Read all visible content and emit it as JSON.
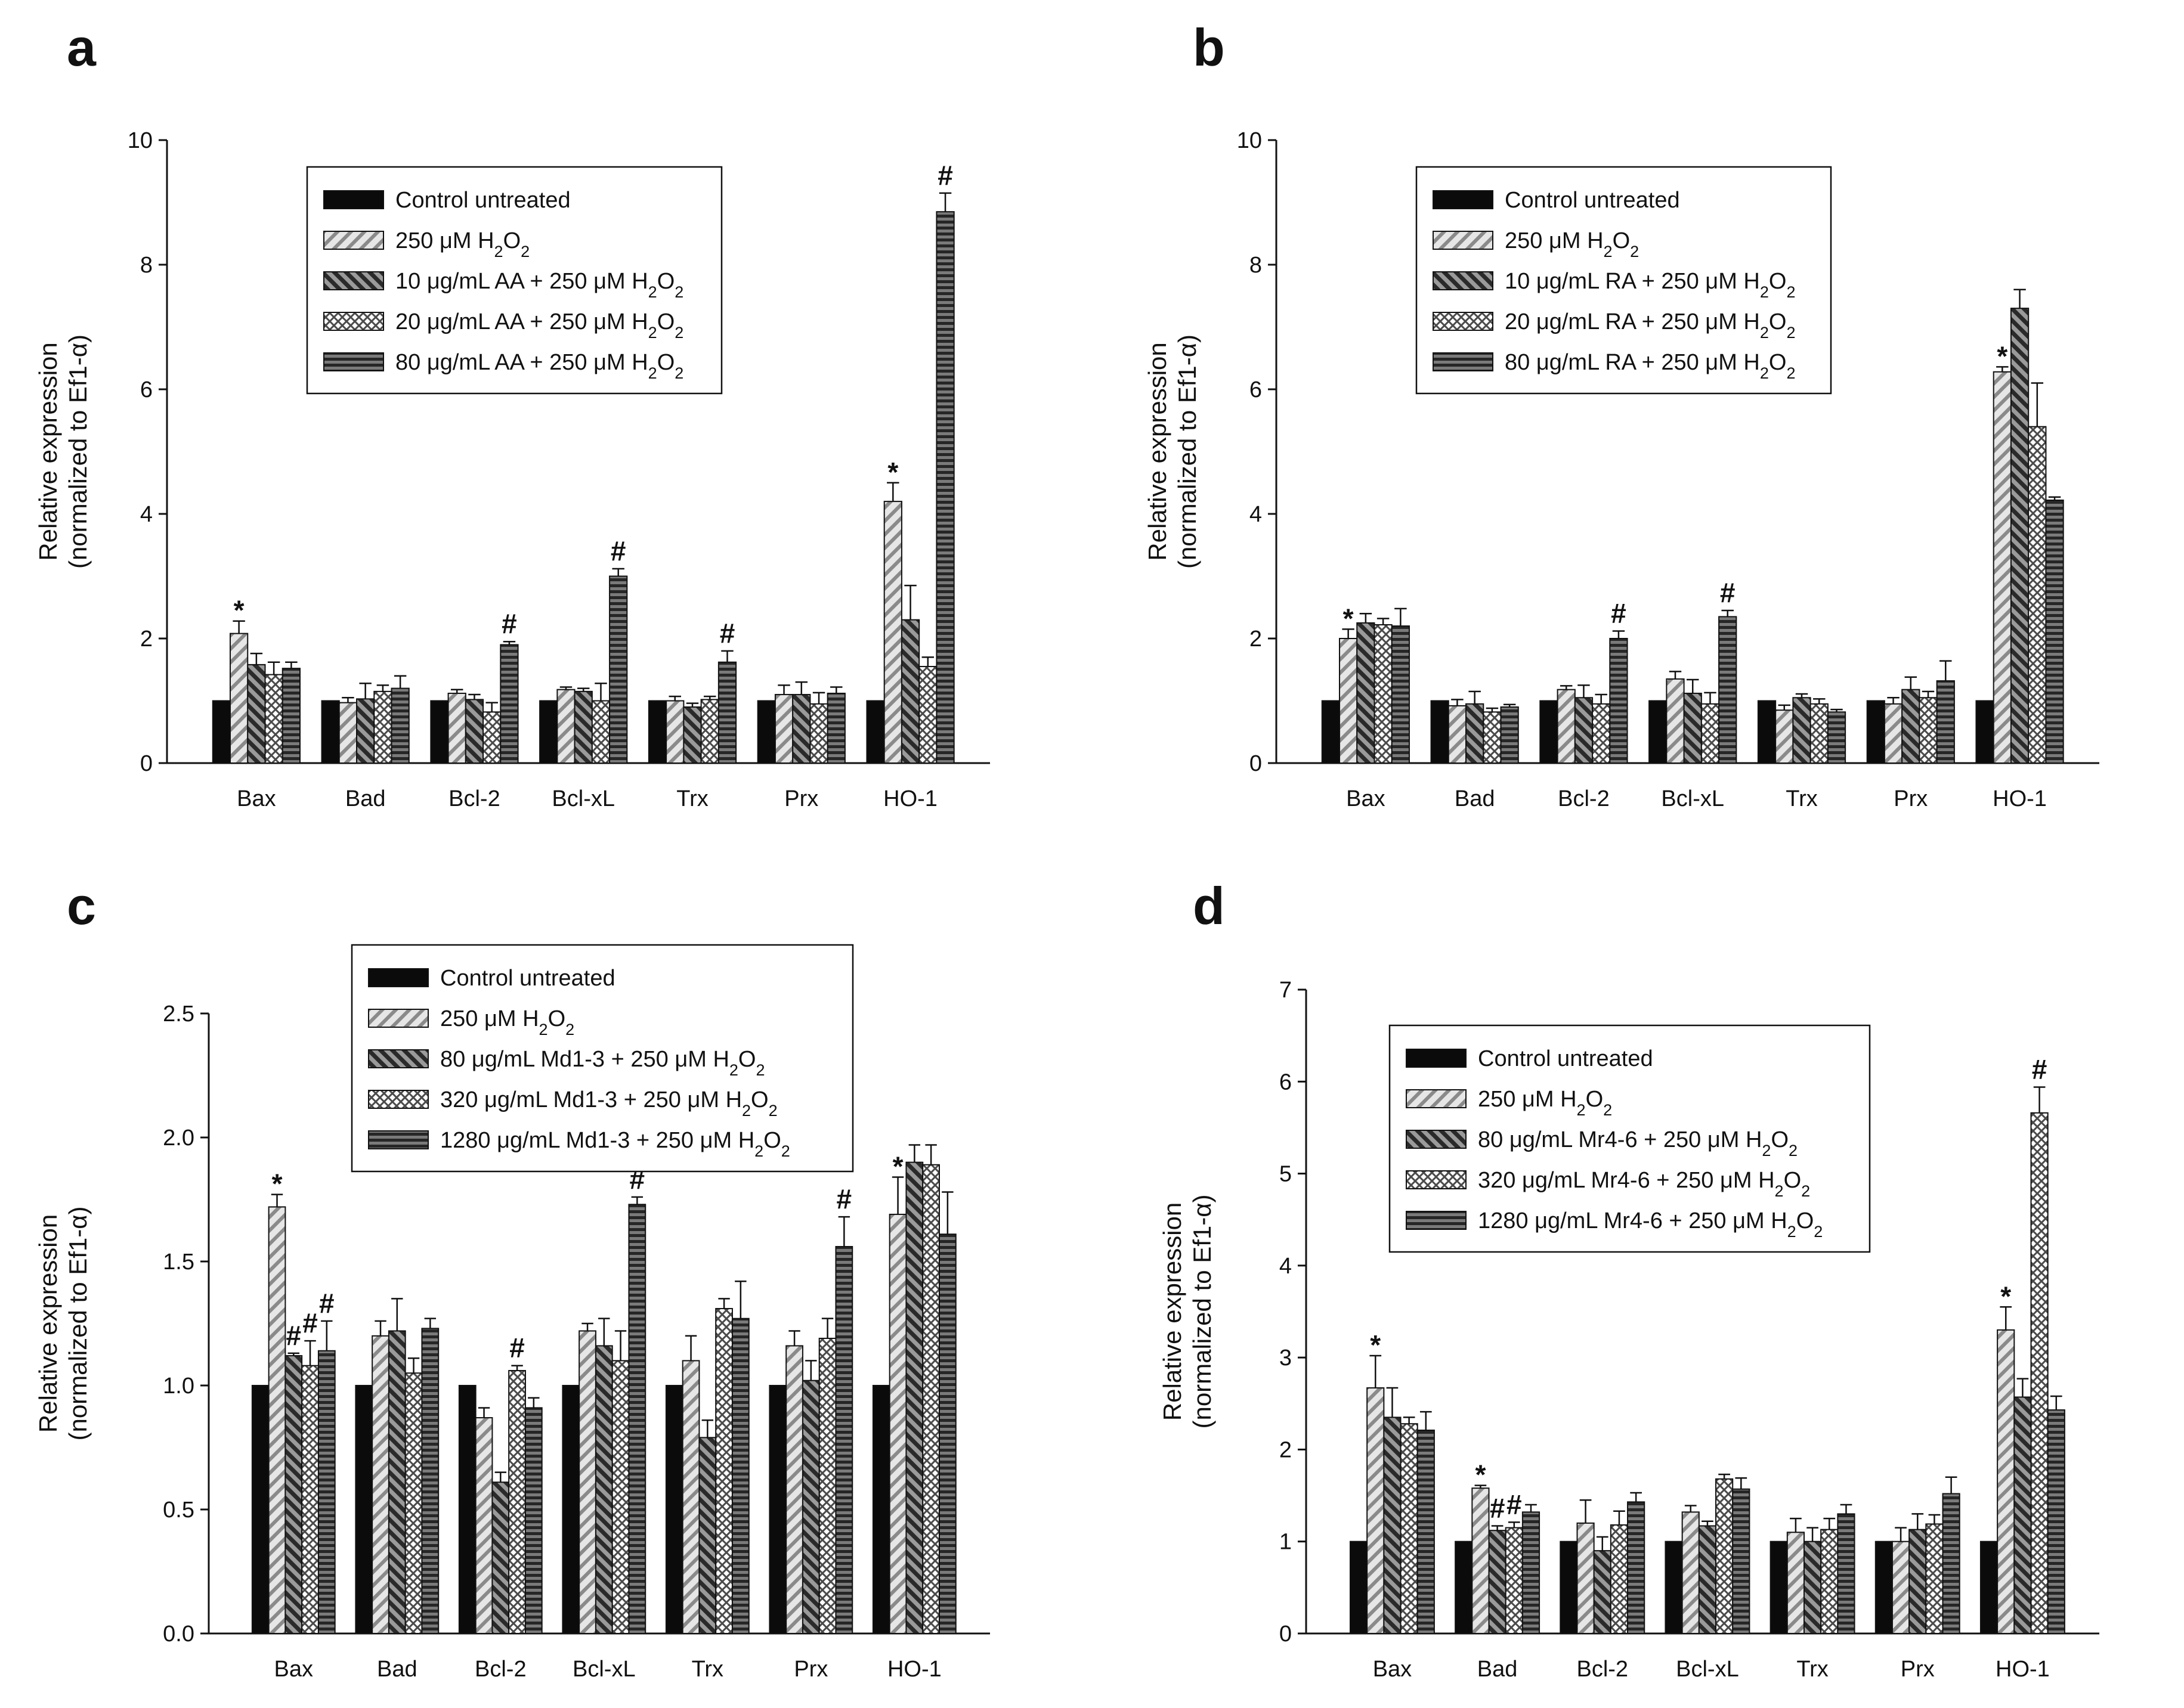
{
  "figure": {
    "colors": {
      "ink": "#111111",
      "control": "#0b0b0b",
      "h2o2": "#cfcfcf",
      "low": "#6a6a6a",
      "mid": "#f2f2f2",
      "high": "#4a4a4a"
    },
    "fill_patterns": [
      "solid-black",
      "diagonal-light",
      "diagonal-dark",
      "crosshatch",
      "horizontal-dark"
    ]
  },
  "chart_data": [
    {
      "panel": "a",
      "type": "bar",
      "ylabel_line1": "Relative expression",
      "ylabel_line2": "(normalized to Ef1-α)",
      "ylim": [
        0,
        10
      ],
      "yticks": [
        "0",
        "2",
        "4",
        "6",
        "8",
        "10"
      ],
      "ytick_values": [
        0,
        2,
        4,
        6,
        8,
        10
      ],
      "categories": [
        "Bax",
        "Bad",
        "Bcl-2",
        "Bcl-xL",
        "Trx",
        "Prx",
        "HO-1"
      ],
      "legend": [
        "Control untreated",
        "250 μM H2O2",
        "10 μg/mL AA + 250 μM H2O2",
        "20 μg/mL AA + 250 μM H2O2",
        "80 μg/mL AA + 250 μM H2O2"
      ],
      "series": [
        {
          "name": "Control untreated",
          "values": [
            1,
            1,
            1,
            1,
            1,
            1,
            1
          ],
          "errors": [
            0,
            0,
            0,
            0,
            0,
            0,
            0
          ]
        },
        {
          "name": "250 μM H2O2",
          "values": [
            2.08,
            0.97,
            1.12,
            1.18,
            1.0,
            1.1,
            4.2
          ],
          "errors": [
            0.2,
            0.08,
            0.06,
            0.04,
            0.07,
            0.15,
            0.3
          ]
        },
        {
          "name": "10 μg/mL AA + 250 μM H2O2",
          "values": [
            1.58,
            1.03,
            1.02,
            1.15,
            0.9,
            1.1,
            2.3
          ],
          "errors": [
            0.18,
            0.25,
            0.08,
            0.05,
            0.06,
            0.2,
            0.55
          ]
        },
        {
          "name": "20 μg/mL AA + 250 μM H2O2",
          "values": [
            1.42,
            1.15,
            0.82,
            1.0,
            1.02,
            0.95,
            1.55
          ],
          "errors": [
            0.2,
            0.1,
            0.15,
            0.28,
            0.05,
            0.18,
            0.15
          ]
        },
        {
          "name": "80 μg/mL AA + 250 μM H2O2",
          "values": [
            1.52,
            1.2,
            1.9,
            3.0,
            1.62,
            1.12,
            8.85
          ],
          "errors": [
            0.1,
            0.2,
            0.05,
            0.12,
            0.18,
            0.1,
            0.3
          ]
        }
      ],
      "markers": [
        {
          "text": "*",
          "category": 0,
          "series": 1
        },
        {
          "text": "#",
          "category": 2,
          "series": 4
        },
        {
          "text": "#",
          "category": 3,
          "series": 4
        },
        {
          "text": "#",
          "category": 4,
          "series": 4
        },
        {
          "text": "*",
          "category": 6,
          "series": 1
        },
        {
          "text": "#",
          "category": 6,
          "series": 4
        }
      ]
    },
    {
      "panel": "b",
      "type": "bar",
      "ylabel_line1": "Relative expression",
      "ylabel_line2": "(normalized to Ef1-α)",
      "ylim": [
        0,
        10
      ],
      "yticks": [
        "0",
        "2",
        "4",
        "6",
        "8",
        "10"
      ],
      "ytick_values": [
        0,
        2,
        4,
        6,
        8,
        10
      ],
      "categories": [
        "Bax",
        "Bad",
        "Bcl-2",
        "Bcl-xL",
        "Trx",
        "Prx",
        "HO-1"
      ],
      "legend": [
        "Control untreated",
        "250 μM H2O2",
        "10 μg/mL RA + 250 μM H2O2",
        "20 μg/mL RA + 250 μM H2O2",
        "80 μg/mL RA + 250 μM H2O2"
      ],
      "series": [
        {
          "name": "Control untreated",
          "values": [
            1,
            1,
            1,
            1,
            1,
            1,
            1
          ],
          "errors": [
            0,
            0,
            0,
            0,
            0,
            0,
            0
          ]
        },
        {
          "name": "250 μM H2O2",
          "values": [
            2.0,
            0.92,
            1.18,
            1.35,
            0.85,
            0.95,
            6.28
          ],
          "errors": [
            0.15,
            0.1,
            0.06,
            0.12,
            0.08,
            0.1,
            0.08
          ]
        },
        {
          "name": "10 μg/mL RA + 250 μM H2O2",
          "values": [
            2.25,
            0.95,
            1.05,
            1.12,
            1.05,
            1.18,
            7.3
          ],
          "errors": [
            0.15,
            0.2,
            0.2,
            0.22,
            0.06,
            0.2,
            0.3
          ]
        },
        {
          "name": "20 μg/mL RA + 250 μM H2O2",
          "values": [
            2.22,
            0.82,
            0.95,
            0.95,
            0.95,
            1.05,
            5.4
          ],
          "errors": [
            0.1,
            0.06,
            0.15,
            0.18,
            0.08,
            0.1,
            0.7
          ]
        },
        {
          "name": "80 μg/mL RA + 250 μM H2O2",
          "values": [
            2.2,
            0.9,
            2.0,
            2.35,
            0.82,
            1.32,
            4.22
          ],
          "errors": [
            0.28,
            0.04,
            0.12,
            0.1,
            0.04,
            0.32,
            0.05
          ]
        }
      ],
      "markers": [
        {
          "text": "*",
          "category": 0,
          "series": 1
        },
        {
          "text": "#",
          "category": 2,
          "series": 4
        },
        {
          "text": "#",
          "category": 3,
          "series": 4
        },
        {
          "text": "*",
          "category": 6,
          "series": 1
        }
      ]
    },
    {
      "panel": "c",
      "type": "bar",
      "ylabel_line1": "Relative expression",
      "ylabel_line2": "(normalized to Ef1-α)",
      "ylim": [
        0,
        2.5
      ],
      "yticks": [
        "0.0",
        "0.5",
        "1.0",
        "1.5",
        "2.0",
        "2.5"
      ],
      "ytick_values": [
        0,
        0.5,
        1.0,
        1.5,
        2.0,
        2.5
      ],
      "categories": [
        "Bax",
        "Bad",
        "Bcl-2",
        "Bcl-xL",
        "Trx",
        "Prx",
        "HO-1"
      ],
      "legend": [
        "Control untreated",
        "250 μM H2O2",
        "80 μg/mL Md1-3 + 250 μM H2O2",
        "320 μg/mL Md1-3 + 250 μM H2O2",
        "1280 μg/mL Md1-3 + 250 μM H2O2"
      ],
      "series": [
        {
          "name": "Control untreated",
          "values": [
            1,
            1,
            1,
            1,
            1,
            1,
            1
          ],
          "errors": [
            0,
            0,
            0,
            0,
            0,
            0,
            0
          ]
        },
        {
          "name": "250 μM H2O2",
          "values": [
            1.72,
            1.2,
            0.87,
            1.22,
            1.1,
            1.16,
            1.69
          ],
          "errors": [
            0.05,
            0.06,
            0.04,
            0.03,
            0.1,
            0.06,
            0.15
          ]
        },
        {
          "name": "80 μg/mL Md1-3 + 250 μM H2O2",
          "values": [
            1.12,
            1.22,
            0.61,
            1.16,
            0.79,
            1.02,
            1.9
          ],
          "errors": [
            0.01,
            0.13,
            0.04,
            0.11,
            0.07,
            0.08,
            0.07
          ]
        },
        {
          "name": "320 μg/mL Md1-3 + 250 μM H2O2",
          "values": [
            1.08,
            1.05,
            1.06,
            1.1,
            1.31,
            1.19,
            1.89
          ],
          "errors": [
            0.1,
            0.06,
            0.02,
            0.12,
            0.04,
            0.08,
            0.08
          ]
        },
        {
          "name": "1280 μg/mL Md1-3 + 250 μM H2O2",
          "values": [
            1.14,
            1.23,
            0.91,
            1.73,
            1.27,
            1.56,
            1.61
          ],
          "errors": [
            0.12,
            0.04,
            0.04,
            0.03,
            0.15,
            0.12,
            0.17
          ]
        }
      ],
      "markers": [
        {
          "text": "*",
          "category": 0,
          "series": 1
        },
        {
          "text": "#",
          "category": 0,
          "series": 2
        },
        {
          "text": "#",
          "category": 0,
          "series": 3
        },
        {
          "text": "#",
          "category": 0,
          "series": 4
        },
        {
          "text": "#",
          "category": 2,
          "series": 3
        },
        {
          "text": "#",
          "category": 3,
          "series": 4
        },
        {
          "text": "#",
          "category": 5,
          "series": 4
        },
        {
          "text": "*",
          "category": 6,
          "series": 1
        }
      ]
    },
    {
      "panel": "d",
      "type": "bar",
      "ylabel_line1": "Relative expression",
      "ylabel_line2": "(normalized to Ef1-α)",
      "ylim": [
        0,
        7
      ],
      "yticks": [
        "0",
        "1",
        "2",
        "3",
        "4",
        "5",
        "6",
        "7"
      ],
      "ytick_values": [
        0,
        1,
        2,
        3,
        4,
        5,
        6,
        7
      ],
      "categories": [
        "Bax",
        "Bad",
        "Bcl-2",
        "Bcl-xL",
        "Trx",
        "Prx",
        "HO-1"
      ],
      "legend": [
        "Control untreated",
        "250 μM H2O2",
        "80 μg/mL Mr4-6 + 250 μM H2O2",
        "320 μg/mL Mr4-6 + 250 μM H2O2",
        "1280 μg/mL Mr4-6 + 250 μM H2O2"
      ],
      "series": [
        {
          "name": "Control untreated",
          "values": [
            1,
            1,
            1,
            1,
            1,
            1,
            1
          ],
          "errors": [
            0,
            0,
            0,
            0,
            0,
            0,
            0
          ]
        },
        {
          "name": "250 μM H2O2",
          "values": [
            2.67,
            1.58,
            1.2,
            1.32,
            1.1,
            1.0,
            3.3
          ],
          "errors": [
            0.35,
            0.03,
            0.25,
            0.07,
            0.15,
            0.15,
            0.25
          ]
        },
        {
          "name": "80 μg/mL Mr4-6 + 250 μM H2O2",
          "values": [
            2.35,
            1.12,
            0.9,
            1.17,
            1.0,
            1.13,
            2.57
          ],
          "errors": [
            0.32,
            0.05,
            0.15,
            0.05,
            0.15,
            0.17,
            0.2
          ]
        },
        {
          "name": "320 μg/mL Mr4-6 + 250 μM H2O2",
          "values": [
            2.28,
            1.15,
            1.18,
            1.68,
            1.13,
            1.19,
            5.66
          ],
          "errors": [
            0.07,
            0.06,
            0.15,
            0.05,
            0.12,
            0.1,
            0.28
          ]
        },
        {
          "name": "1280 μg/mL Mr4-6 + 250 μM H2O2",
          "values": [
            2.21,
            1.32,
            1.43,
            1.57,
            1.3,
            1.52,
            2.43
          ],
          "errors": [
            0.2,
            0.08,
            0.1,
            0.12,
            0.1,
            0.18,
            0.15
          ]
        }
      ],
      "markers": [
        {
          "text": "*",
          "category": 0,
          "series": 1
        },
        {
          "text": "*",
          "category": 1,
          "series": 1
        },
        {
          "text": "#",
          "category": 1,
          "series": 2
        },
        {
          "text": "#",
          "category": 1,
          "series": 3
        },
        {
          "text": "*",
          "category": 6,
          "series": 1
        },
        {
          "text": "#",
          "category": 6,
          "series": 3
        }
      ]
    }
  ]
}
